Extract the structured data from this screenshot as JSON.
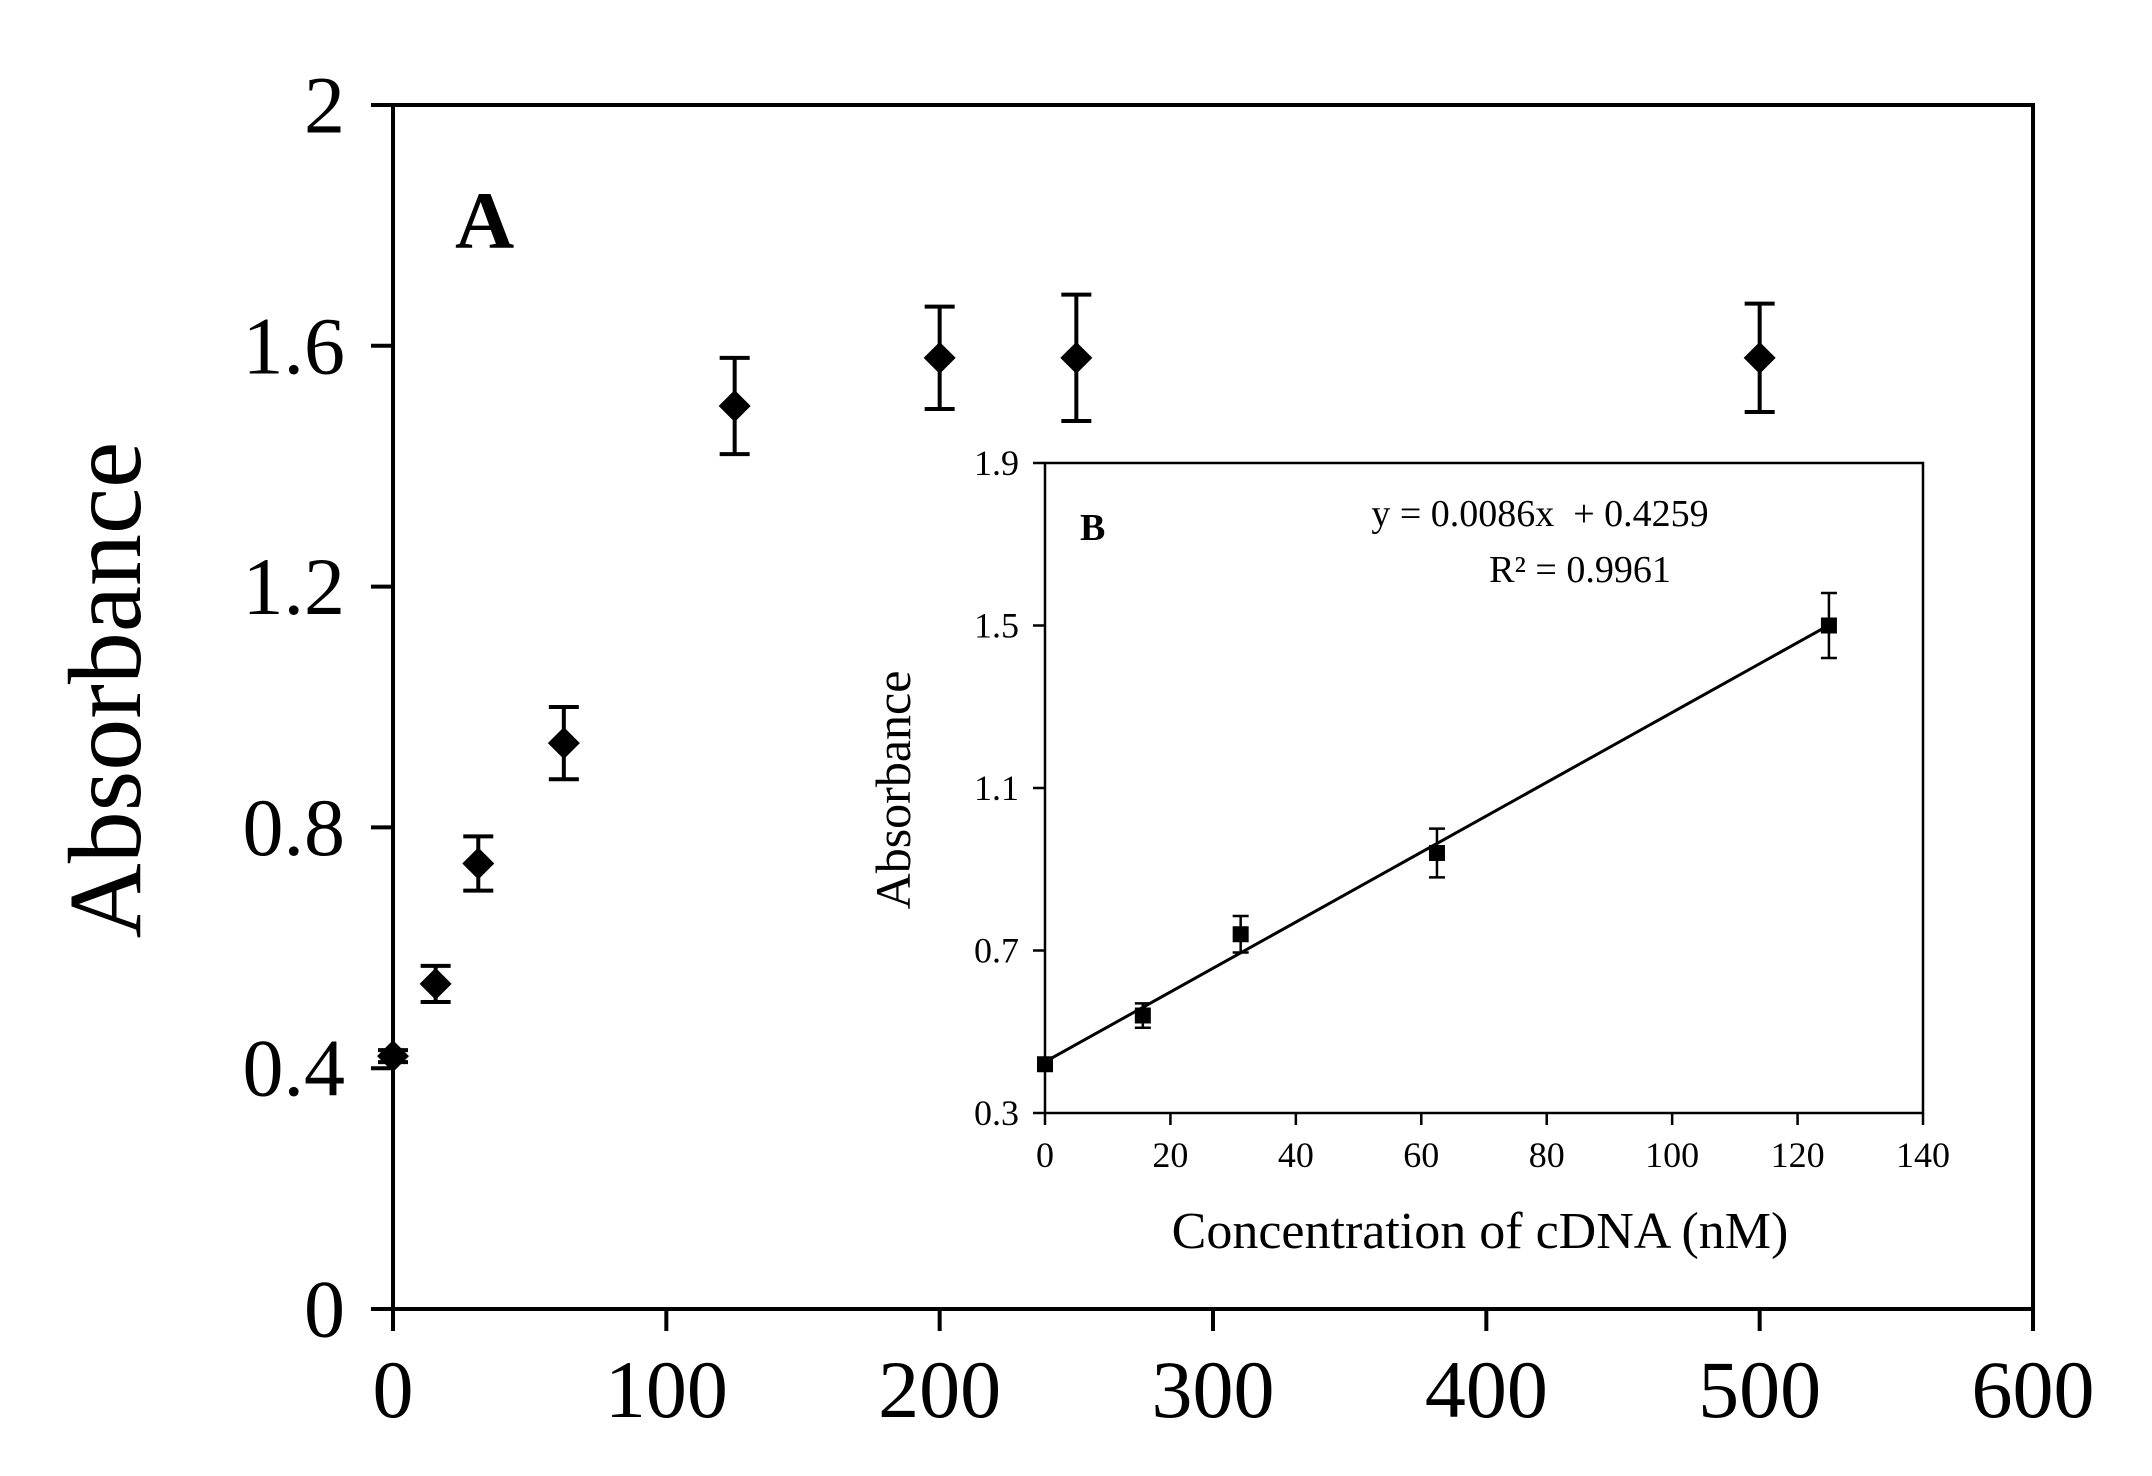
{
  "chart_data": [
    {
      "id": "A",
      "type": "scatter",
      "panel_label": "A",
      "title": "",
      "xlabel": "",
      "ylabel": "Absorbance",
      "xlim": [
        0,
        600
      ],
      "ylim": [
        0,
        2
      ],
      "xticks": [
        "0",
        "100",
        "200",
        "300",
        "400",
        "500",
        "600"
      ],
      "yticks": [
        "0",
        "0.4",
        "0.8",
        "1.2",
        "1.6",
        "2"
      ],
      "xtick_values": [
        0,
        100,
        200,
        300,
        400,
        500,
        600
      ],
      "ytick_values": [
        0,
        0.4,
        0.8,
        1.2,
        1.6,
        2
      ],
      "grid": false,
      "marker": "diamond",
      "series": [
        {
          "name": "Absorbance",
          "points": [
            {
              "x": 0,
              "y": 0.42,
              "err": 0.01
            },
            {
              "x": 15.6,
              "y": 0.54,
              "err": 0.03
            },
            {
              "x": 31.2,
              "y": 0.74,
              "err": 0.045
            },
            {
              "x": 62.5,
              "y": 0.94,
              "err": 0.06
            },
            {
              "x": 125,
              "y": 1.5,
              "err": 0.08
            },
            {
              "x": 200,
              "y": 1.58,
              "err": 0.085
            },
            {
              "x": 250,
              "y": 1.58,
              "err": 0.105
            },
            {
              "x": 500,
              "y": 1.58,
              "err": 0.09
            }
          ]
        }
      ]
    },
    {
      "id": "B",
      "type": "scatter",
      "panel_label": "B",
      "title": "",
      "xlabel": "Concentration of cDNA (nM)",
      "ylabel": "Absorbance",
      "xlim": [
        0,
        140
      ],
      "ylim": [
        0.3,
        1.9
      ],
      "xticks": [
        "0",
        "20",
        "40",
        "60",
        "80",
        "100",
        "120",
        "140"
      ],
      "yticks": [
        "0.3",
        "0.7",
        "1.1",
        "1.5",
        "1.9"
      ],
      "xtick_values": [
        0,
        20,
        40,
        60,
        80,
        100,
        120,
        140
      ],
      "ytick_values": [
        0.3,
        0.7,
        1.1,
        1.5,
        1.9
      ],
      "grid": false,
      "marker": "square",
      "series": [
        {
          "name": "Absorbance",
          "points": [
            {
              "x": 0,
              "y": 0.42,
              "err": 0.01
            },
            {
              "x": 15.6,
              "y": 0.54,
              "err": 0.03
            },
            {
              "x": 31.2,
              "y": 0.74,
              "err": 0.045
            },
            {
              "x": 62.5,
              "y": 0.94,
              "err": 0.06
            },
            {
              "x": 125,
              "y": 1.5,
              "err": 0.08
            }
          ]
        }
      ],
      "trendline": {
        "slope": 0.0086,
        "intercept": 0.4259,
        "x_range": [
          0,
          125
        ]
      },
      "annotations": {
        "equation": "y = 0.0086x  + 0.4259",
        "r2": "R² = 0.9961"
      }
    }
  ]
}
